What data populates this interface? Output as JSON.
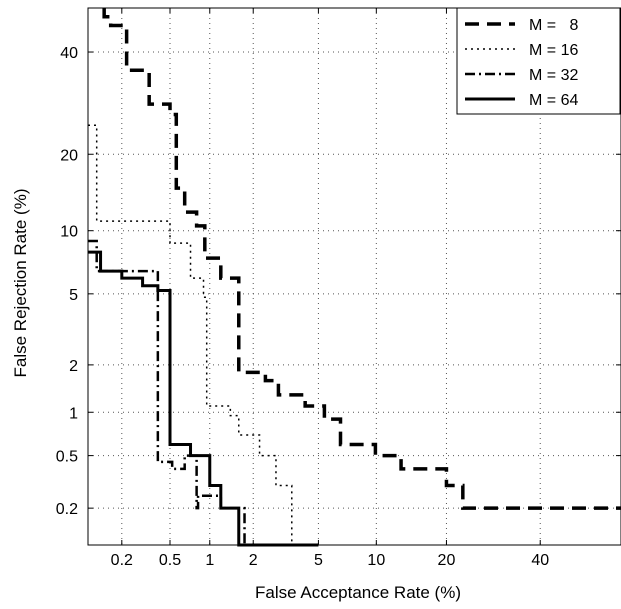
{
  "chart_data": {
    "type": "line",
    "title": "",
    "xlabel": "False Acceptance Rate (%)",
    "ylabel": "False Rejection Rate (%)",
    "xscale": "normal-deviate",
    "yscale": "normal-deviate",
    "xlim": [
      0.1,
      60
    ],
    "ylim": [
      0.1,
      50
    ],
    "xticks": [
      0.2,
      0.5,
      1,
      2,
      5,
      10,
      20,
      40
    ],
    "xtick_labels": [
      "0.2",
      "0.5",
      "1",
      "2",
      "5",
      "10",
      "20",
      "40"
    ],
    "yticks": [
      0.2,
      0.5,
      1,
      2,
      5,
      10,
      20,
      40
    ],
    "ytick_labels": [
      "0.2",
      "0.5",
      "1",
      "2",
      "5",
      "10",
      "20",
      "40"
    ],
    "grid": true,
    "legend_position": "top-right",
    "series": [
      {
        "name": "M =   8",
        "style": "dashed",
        "color": "#000000",
        "x": [
          0.14,
          0.14,
          0.16,
          0.16,
          0.22,
          0.22,
          0.34,
          0.34,
          0.5,
          0.5,
          0.56,
          0.56,
          0.65,
          0.65,
          0.8,
          0.8,
          0.92,
          0.92,
          1.2,
          1.2,
          1.6,
          1.6,
          2.4,
          2.4,
          2.9,
          2.9,
          4.2,
          4.2,
          5.4,
          5.4,
          6.6,
          6.6,
          9.9,
          9.9,
          13,
          13,
          20,
          20,
          23,
          23,
          60
        ],
        "y": [
          50,
          48,
          48,
          46,
          46,
          36,
          36,
          29,
          29,
          27,
          27,
          15,
          15,
          12,
          12,
          10.5,
          10.5,
          7.5,
          7.5,
          6,
          6,
          1.8,
          1.8,
          1.6,
          1.6,
          1.3,
          1.3,
          1.1,
          1.1,
          0.9,
          0.9,
          0.6,
          0.6,
          0.5,
          0.5,
          0.4,
          0.4,
          0.3,
          0.3,
          0.2,
          0.2
        ]
      },
      {
        "name": "M = 16",
        "style": "dotted",
        "color": "#000000",
        "x": [
          0.1,
          0.12,
          0.12,
          0.5,
          0.5,
          0.72,
          0.72,
          0.9,
          0.9,
          0.95,
          0.95,
          1.4,
          1.4,
          1.6,
          1.6,
          2.2,
          2.2,
          2.8,
          2.8,
          3.5,
          3.5,
          5
        ],
        "y": [
          25,
          25,
          11,
          11,
          8.8,
          8.8,
          6,
          6,
          4.8,
          4.8,
          1.1,
          1.1,
          0.95,
          0.95,
          0.7,
          0.7,
          0.5,
          0.5,
          0.3,
          0.3,
          0.1,
          0.1
        ]
      },
      {
        "name": "M = 32",
        "style": "dash-dot",
        "color": "#000000",
        "x": [
          0.1,
          0.12,
          0.12,
          0.38,
          0.38,
          0.4,
          0.4,
          0.52,
          0.52,
          0.65,
          0.65,
          0.8,
          0.8,
          0.82,
          0.82,
          1.2,
          1.2,
          1.75,
          1.75,
          2.2
        ],
        "y": [
          9,
          9,
          6.5,
          6.5,
          6.5,
          6.5,
          0.45,
          0.45,
          0.4,
          0.4,
          0.5,
          0.5,
          0.2,
          0.2,
          0.25,
          0.25,
          0.2,
          0.2,
          0.1,
          0.1
        ]
      },
      {
        "name": "M = 64",
        "style": "solid",
        "color": "#000000",
        "x": [
          0.1,
          0.13,
          0.13,
          0.2,
          0.2,
          0.3,
          0.3,
          0.4,
          0.4,
          0.45,
          0.45,
          0.5,
          0.5,
          0.72,
          0.72,
          1.0,
          1.0,
          1.2,
          1.2,
          1.6,
          1.6,
          5
        ],
        "y": [
          8,
          8,
          6.5,
          6.5,
          6.0,
          6.0,
          5.5,
          5.5,
          5.2,
          5.2,
          5.2,
          5.2,
          0.6,
          0.6,
          0.5,
          0.5,
          0.3,
          0.3,
          0.2,
          0.2,
          0.1,
          0.1
        ]
      }
    ]
  }
}
